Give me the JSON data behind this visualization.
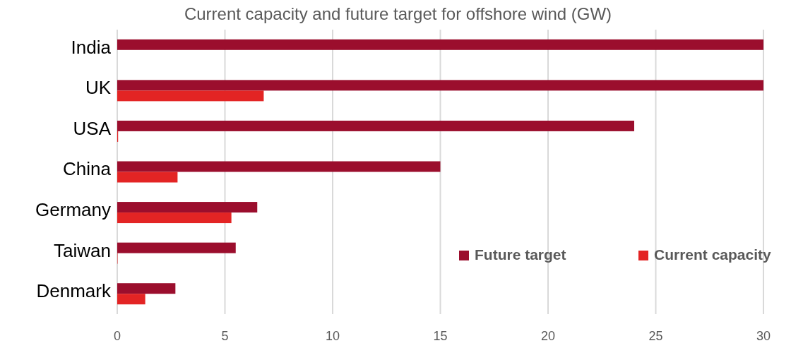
{
  "chart_data": {
    "type": "bar",
    "orientation": "horizontal",
    "title": "Current capacity and future target for offshore wind (GW)",
    "categories": [
      "India",
      "UK",
      "USA",
      "China",
      "Germany",
      "Taiwan",
      "Denmark"
    ],
    "series": [
      {
        "name": "Future target",
        "color": "#9b0e2d",
        "values": [
          30,
          30,
          24,
          15,
          6.5,
          5.5,
          2.7
        ]
      },
      {
        "name": "Current capacity",
        "color": "#e32424",
        "values": [
          null,
          6.8,
          0.04,
          2.8,
          5.3,
          0.01,
          1.3
        ]
      }
    ],
    "xlim": [
      0,
      30
    ],
    "xticks": [
      0,
      5,
      10,
      15,
      20,
      25,
      30
    ],
    "grid": "x",
    "legend": "bottom right"
  }
}
